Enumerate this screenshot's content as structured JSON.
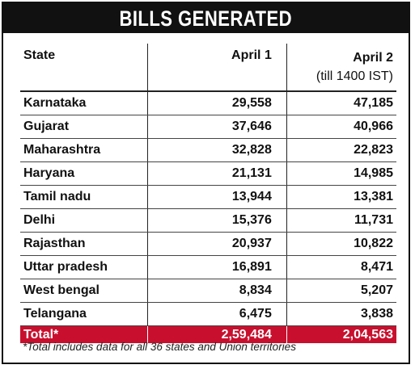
{
  "title": "BILLS GENERATED",
  "chart_data": {
    "type": "table",
    "title": "BILLS GENERATED",
    "columns": [
      "State",
      "April 1",
      "April 2",
      "(till 1400 IST)"
    ],
    "rows": [
      {
        "state": "Karnataka",
        "april1": "29,558",
        "april2": "47,185"
      },
      {
        "state": "Gujarat",
        "april1": "37,646",
        "april2": "40,966"
      },
      {
        "state": "Maharashtra",
        "april1": "32,828",
        "april2": "22,823"
      },
      {
        "state": "Haryana",
        "april1": "21,131",
        "april2": "14,985"
      },
      {
        "state": "Tamil nadu",
        "april1": "13,944",
        "april2": "13,381"
      },
      {
        "state": "Delhi",
        "april1": "15,376",
        "april2": "11,731"
      },
      {
        "state": "Rajasthan",
        "april1": "20,937",
        "april2": "10,822"
      },
      {
        "state": "Uttar pradesh",
        "april1": "16,891",
        "april2": "8,471"
      },
      {
        "state": "West bengal",
        "april1": "8,834",
        "april2": "5,207"
      },
      {
        "state": "Telangana",
        "april1": "6,475",
        "april2": "3,838"
      }
    ],
    "total": {
      "label": "Total*",
      "april1": "2,59,484",
      "april2": "2,04,563"
    },
    "footnote": "*Total includes data for all 36 states and Union territories"
  },
  "colors": {
    "title_bg": "#111111",
    "total_bg": "#c8102e"
  }
}
